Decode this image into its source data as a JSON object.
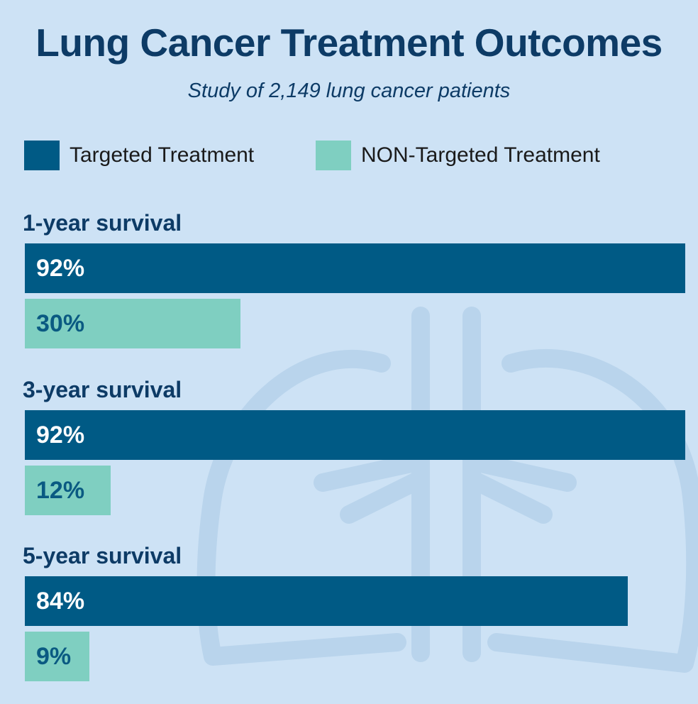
{
  "title": "Lung Cancer Treatment Outcomes",
  "subtitle": "Study of 2,149 lung cancer patients",
  "colors": {
    "targeted": "#005a85",
    "non_targeted": "#7fcfc1",
    "background": "#cde2f5",
    "lung_outline": "#b9d4ec"
  },
  "background_icon": "lungs-icon",
  "chart_data": {
    "type": "bar",
    "orientation": "horizontal",
    "title": "Lung Cancer Treatment Outcomes",
    "subtitle": "Study of 2,149 lung cancer patients",
    "categories": [
      "1-year survival",
      "3-year survival",
      "5-year survival"
    ],
    "series": [
      {
        "name": "Targeted Treatment",
        "values": [
          92,
          92,
          84
        ],
        "labels": [
          "92%",
          "92%",
          "84%"
        ]
      },
      {
        "name": "NON-Targeted Treatment",
        "values": [
          30,
          12,
          9
        ],
        "labels": [
          "30%",
          "12%",
          "9%"
        ]
      }
    ],
    "legend": "top-left",
    "grid": false
  }
}
